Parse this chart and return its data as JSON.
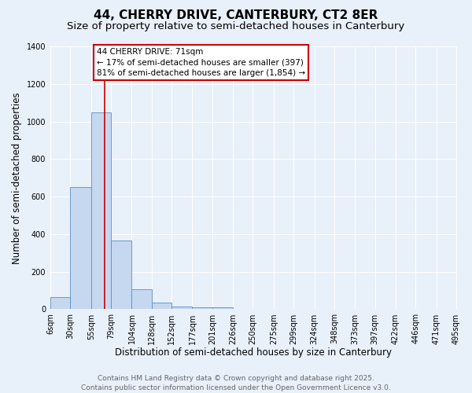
{
  "title_line1": "44, CHERRY DRIVE, CANTERBURY, CT2 8ER",
  "title_line2": "Size of property relative to semi-detached houses in Canterbury",
  "xlabel": "Distribution of semi-detached houses by size in Canterbury",
  "ylabel": "Number of semi-detached properties",
  "bar_color": "#c5d8f0",
  "bar_edge_color": "#5b8ec4",
  "background_color": "#e8f0fa",
  "grid_color": "#ffffff",
  "bin_labels": [
    "6sqm",
    "30sqm",
    "55sqm",
    "79sqm",
    "104sqm",
    "128sqm",
    "152sqm",
    "177sqm",
    "201sqm",
    "226sqm",
    "250sqm",
    "275sqm",
    "299sqm",
    "324sqm",
    "348sqm",
    "373sqm",
    "397sqm",
    "422sqm",
    "446sqm",
    "471sqm",
    "495sqm"
  ],
  "bin_edges": [
    6,
    30,
    55,
    79,
    104,
    128,
    152,
    177,
    201,
    226,
    250,
    275,
    299,
    324,
    348,
    373,
    397,
    422,
    446,
    471,
    495
  ],
  "bar_heights": [
    65,
    650,
    1050,
    365,
    105,
    35,
    15,
    10,
    10,
    0,
    0,
    0,
    0,
    0,
    0,
    0,
    0,
    0,
    0,
    0
  ],
  "property_size": 71,
  "red_line_color": "#cc0000",
  "annotation_text": "44 CHERRY DRIVE: 71sqm\n← 17% of semi-detached houses are smaller (397)\n81% of semi-detached houses are larger (1,854) →",
  "annotation_box_color": "#ffffff",
  "annotation_box_edge": "#cc0000",
  "ylim": [
    0,
    1400
  ],
  "yticks": [
    0,
    200,
    400,
    600,
    800,
    1000,
    1200,
    1400
  ],
  "footer_line1": "Contains HM Land Registry data © Crown copyright and database right 2025.",
  "footer_line2": "Contains public sector information licensed under the Open Government Licence v3.0.",
  "title_fontsize": 11,
  "subtitle_fontsize": 9.5,
  "axis_label_fontsize": 8.5,
  "tick_fontsize": 7,
  "annotation_fontsize": 7.5,
  "footer_fontsize": 6.5
}
